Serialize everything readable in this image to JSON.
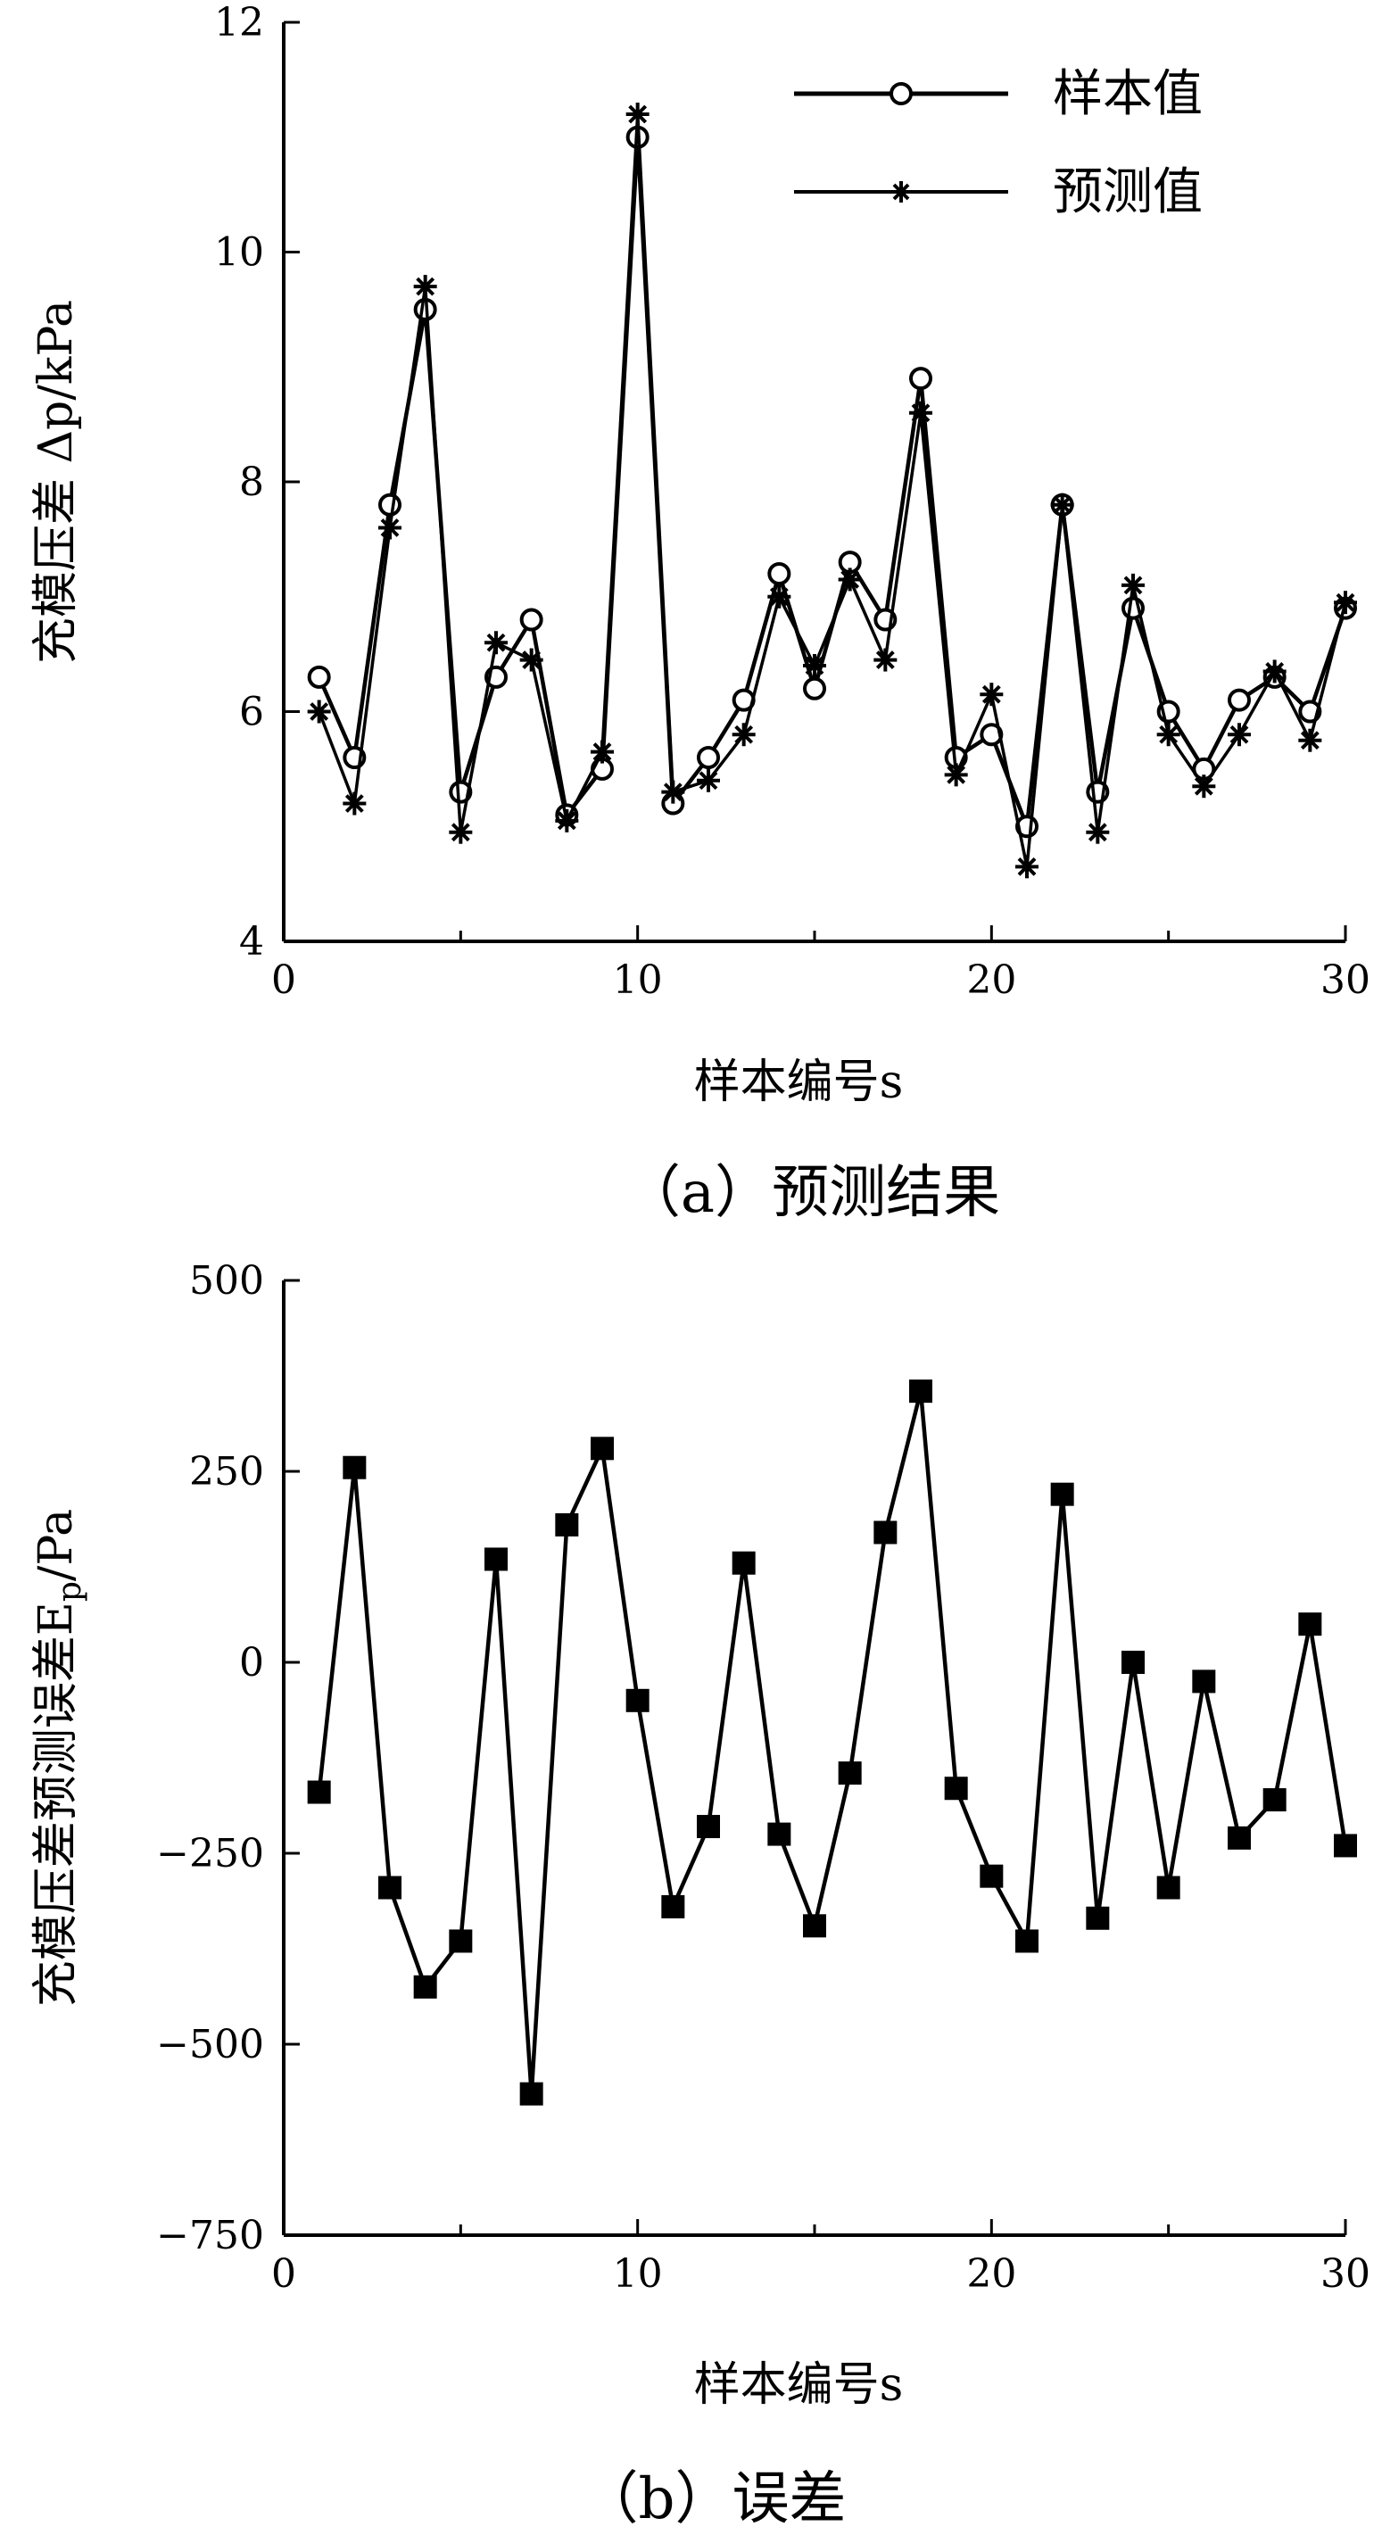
{
  "chart_data": [
    {
      "type": "line",
      "caption": "（a）预测结果",
      "xlabel": "样本编号s",
      "ylabel": "充模压差 Δp/kPa",
      "xlim": [
        0,
        30
      ],
      "ylim": [
        4,
        12
      ],
      "xticks": [
        0,
        10,
        20,
        30
      ],
      "yticks": [
        4,
        6,
        8,
        10,
        12
      ],
      "grid": false,
      "legend_position": "top-right",
      "x": [
        1,
        2,
        3,
        4,
        5,
        6,
        7,
        8,
        9,
        10,
        11,
        12,
        13,
        14,
        15,
        16,
        17,
        18,
        19,
        20,
        21,
        22,
        23,
        24,
        25,
        26,
        27,
        28,
        29,
        30
      ],
      "series": [
        {
          "name": "样本值",
          "marker": "circle",
          "values": [
            6.3,
            5.6,
            7.8,
            9.5,
            5.3,
            6.3,
            6.8,
            5.1,
            5.5,
            11.0,
            5.2,
            5.6,
            6.1,
            7.2,
            6.2,
            7.3,
            6.8,
            8.9,
            5.6,
            5.8,
            5.0,
            7.8,
            5.3,
            6.9,
            6.0,
            5.5,
            6.1,
            6.3,
            6.0,
            6.9
          ]
        },
        {
          "name": "预测值",
          "marker": "asterisk",
          "values": [
            6.0,
            5.2,
            7.6,
            9.7,
            4.95,
            6.6,
            6.45,
            5.05,
            5.65,
            11.2,
            5.3,
            5.4,
            5.8,
            7.0,
            6.4,
            7.15,
            6.45,
            8.6,
            5.45,
            6.15,
            4.65,
            7.8,
            4.95,
            7.1,
            5.8,
            5.35,
            5.8,
            6.35,
            5.75,
            6.95
          ]
        }
      ]
    },
    {
      "type": "line",
      "caption": "（b）误差",
      "xlabel": "样本编号s",
      "ylabel": "充模压差预测误差E",
      "ylabel_sub": "p",
      "ylabel_unit": "/Pa",
      "xlim": [
        0,
        30
      ],
      "ylim": [
        -750,
        500
      ],
      "xticks": [
        0,
        10,
        20,
        30
      ],
      "yticks": [
        500,
        250,
        0,
        -250,
        -500,
        -750
      ],
      "ytick_labels": [
        "500",
        "250",
        "0",
        "−250",
        "−500",
        "−750"
      ],
      "grid": false,
      "x": [
        1,
        2,
        3,
        4,
        5,
        6,
        7,
        8,
        9,
        10,
        11,
        12,
        13,
        14,
        15,
        16,
        17,
        18,
        19,
        20,
        21,
        22,
        23,
        24,
        25,
        26,
        27,
        28,
        29,
        30
      ],
      "series": [
        {
          "marker": "square",
          "values": [
            -170,
            255,
            -295,
            -425,
            -365,
            135,
            -565,
            180,
            280,
            -50,
            -320,
            -215,
            130,
            -225,
            -345,
            -145,
            170,
            355,
            -165,
            -280,
            -365,
            220,
            -335,
            0,
            -295,
            -25,
            -230,
            -180,
            50,
            -240
          ]
        }
      ]
    }
  ]
}
